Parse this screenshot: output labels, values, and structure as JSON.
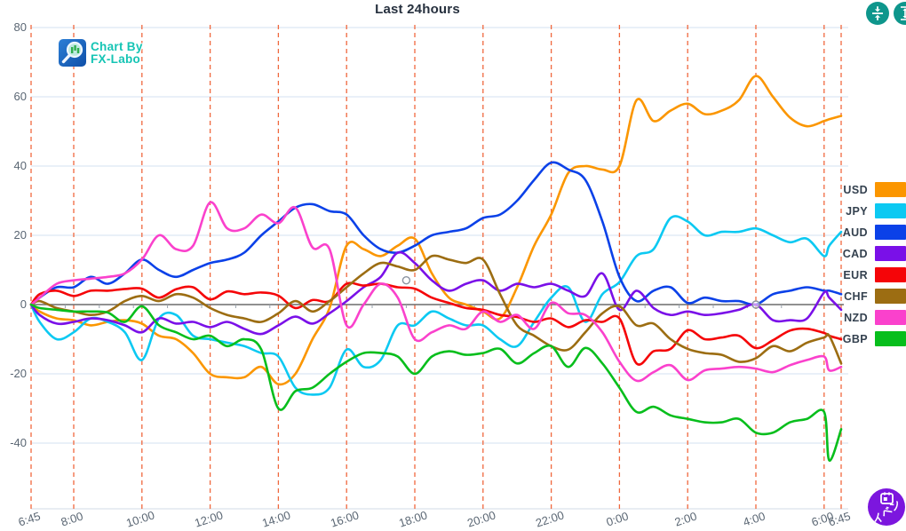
{
  "header": {
    "title": "Last 24hours"
  },
  "watermark": {
    "line1": "Chart By",
    "line2": "FX-Labo"
  },
  "controls": {
    "event_button_label": "イベン",
    "button_color_teal": "#0e968c",
    "event_button_color": "#7c16de"
  },
  "chart_data": {
    "type": "line",
    "title": "Last 24hours",
    "ylabel": "",
    "xlabel": "",
    "ylim": [
      -59,
      80
    ],
    "y_ticks": [
      80,
      60,
      40,
      20,
      0,
      -20,
      -40
    ],
    "grid": "on",
    "legend_position": "right",
    "grid_color_vertical": "#f0683e",
    "grid_color_horizontal": "#dce8f4",
    "x_ticks": [
      {
        "label": "6:45",
        "hour": 0
      },
      {
        "label": "8:00",
        "hour": 1.25
      },
      {
        "label": "10:00",
        "hour": 3.25
      },
      {
        "label": "12:00",
        "hour": 5.25
      },
      {
        "label": "14:00",
        "hour": 7.25
      },
      {
        "label": "16:00",
        "hour": 9.25
      },
      {
        "label": "18:00",
        "hour": 11.25
      },
      {
        "label": "20:00",
        "hour": 13.25
      },
      {
        "label": "22:00",
        "hour": 15.25
      },
      {
        "label": "0:00",
        "hour": 17.25
      },
      {
        "label": "2:00",
        "hour": 19.25
      },
      {
        "label": "4:00",
        "hour": 21.25
      },
      {
        "label": "6:00",
        "hour": 23.25
      },
      {
        "label": "6:45",
        "hour": 23.75
      }
    ],
    "categories": [
      "6:45",
      "7:00",
      "7:30",
      "8:00",
      "8:30",
      "9:00",
      "9:30",
      "10:00",
      "10:30",
      "11:00",
      "11:30",
      "12:00",
      "12:30",
      "13:00",
      "13:30",
      "14:00",
      "14:30",
      "15:00",
      "15:30",
      "16:00",
      "16:30",
      "17:00",
      "17:30",
      "18:00",
      "18:30",
      "19:00",
      "19:30",
      "20:00",
      "20:30",
      "21:00",
      "21:30",
      "22:00",
      "22:30",
      "23:00",
      "23:30",
      "0:00",
      "0:30",
      "1:00",
      "1:30",
      "2:00",
      "2:30",
      "3:00",
      "3:30",
      "4:00",
      "4:30",
      "5:00",
      "5:30",
      "6:00",
      "6:15",
      "6:45"
    ],
    "hours": [
      0,
      0.25,
      0.75,
      1.25,
      1.75,
      2.25,
      2.75,
      3.25,
      3.75,
      4.25,
      4.75,
      5.25,
      5.75,
      6.25,
      6.75,
      7.25,
      7.75,
      8.25,
      8.75,
      9.25,
      9.75,
      10.25,
      10.75,
      11.25,
      11.75,
      12.25,
      12.75,
      13.25,
      13.75,
      14.25,
      14.75,
      15.25,
      15.75,
      16.25,
      16.75,
      17.25,
      17.75,
      18.25,
      18.75,
      19.25,
      19.75,
      20.25,
      20.75,
      21.25,
      21.75,
      22.25,
      22.75,
      23.25,
      23.4,
      23.75
    ],
    "series": [
      {
        "name": "USD",
        "color": "#fb9600",
        "values": [
          0,
          -2,
          -4,
          -4.5,
          -6,
          -5,
          -4.5,
          -5.5,
          -9,
          -10,
          -14,
          -20,
          -21,
          -21,
          -18,
          -23,
          -20,
          -10,
          -1,
          17,
          16,
          14,
          17,
          19,
          9,
          2,
          0,
          -2,
          -4,
          5,
          17,
          26,
          38,
          40,
          39,
          40,
          59,
          53,
          56,
          58,
          55,
          56,
          59,
          66,
          60,
          54,
          51.5,
          53,
          53.5,
          54.5
        ]
      },
      {
        "name": "JPY",
        "color": "#0cc9f2",
        "values": [
          0,
          -5,
          -10,
          -8,
          -4,
          -5,
          -8,
          -16,
          -4,
          -3,
          -9,
          -10,
          -11,
          -12,
          -14,
          -15,
          -24,
          -26,
          -24,
          -13,
          -18,
          -16,
          -6,
          -6,
          -2,
          -4,
          -6,
          -6,
          -10,
          -12,
          -5,
          2,
          5,
          -5,
          3,
          6.5,
          14,
          16,
          25,
          24,
          20,
          21,
          21,
          22,
          20,
          18,
          19,
          14,
          17,
          21
        ]
      },
      {
        "name": "AUD",
        "color": "#0b41e8",
        "values": [
          0,
          2,
          5,
          5,
          8,
          6,
          9,
          13,
          10,
          8,
          10,
          12,
          13,
          15,
          20,
          24,
          28,
          29,
          27,
          26,
          20,
          16,
          15,
          17,
          20,
          21,
          22,
          25,
          26,
          30,
          36,
          41,
          39,
          36,
          24,
          8,
          1,
          4,
          5,
          0.5,
          2,
          1,
          1,
          0,
          3,
          4,
          5,
          4,
          4,
          3
        ]
      },
      {
        "name": "CAD",
        "color": "#7a10e8",
        "values": [
          0,
          -3,
          -5.5,
          -5,
          -4,
          -4.5,
          -6,
          -8,
          -4,
          -5.5,
          -5,
          -6.5,
          -5,
          -7,
          -8.5,
          -6,
          -3.5,
          -5.5,
          -2.5,
          1,
          5,
          8,
          15,
          12,
          7,
          4,
          6,
          7,
          4,
          6,
          5,
          6,
          4,
          2.5,
          9,
          -1.5,
          4,
          -1,
          -3,
          -2,
          -3,
          -2.5,
          -1.5,
          0,
          -4.5,
          -4.5,
          -4,
          3.5,
          2,
          -1.5
        ]
      },
      {
        "name": "EUR",
        "color": "#f50508",
        "values": [
          0,
          3,
          4,
          2.5,
          4,
          4,
          4.5,
          4.6,
          2,
          4.4,
          5,
          1.5,
          3.8,
          3,
          3.5,
          2.6,
          -1,
          1.3,
          1,
          6,
          5.5,
          6,
          5,
          4.6,
          2,
          0.5,
          -1,
          -1.5,
          -3,
          -3.6,
          -5,
          -4,
          -6.5,
          -4.5,
          -5,
          -4,
          -17,
          -13.5,
          -12.8,
          -7.4,
          -10,
          -9.5,
          -9,
          -12.6,
          -10.3,
          -7.5,
          -7,
          -8.2,
          -9,
          -10
        ]
      },
      {
        "name": "CHF",
        "color": "#9c6d12",
        "values": [
          0,
          1,
          -1,
          -2,
          -3,
          -2,
          1,
          2.5,
          1,
          3,
          2,
          -1,
          -3,
          -4,
          -5,
          -2.5,
          1,
          -2,
          1,
          5,
          9,
          12,
          11,
          10,
          14,
          13,
          12,
          13,
          3,
          -6,
          -9,
          -12,
          -13,
          -8,
          -2.5,
          -0.5,
          -6,
          -5.5,
          -10,
          -12.8,
          -14,
          -14.5,
          -16.5,
          -15.5,
          -12,
          -13.5,
          -11,
          -9.5,
          -9,
          -17
        ]
      },
      {
        "name": "NZD",
        "color": "#fa41cc",
        "values": [
          0,
          2,
          6,
          7,
          7.5,
          8,
          9,
          13,
          20,
          16,
          17,
          29.5,
          22,
          22,
          26,
          23.5,
          28,
          16.5,
          16,
          -6,
          0,
          6,
          2,
          -10,
          -8,
          -6,
          -7,
          -2,
          -5,
          -3,
          -7,
          0.5,
          -2.5,
          -3,
          -8,
          -16.5,
          -22,
          -19.5,
          -17.5,
          -21.8,
          -19,
          -18.5,
          -18,
          -18.5,
          -19.5,
          -17.5,
          -16,
          -15,
          -19,
          -18
        ]
      },
      {
        "name": "GBP",
        "color": "#07be1c",
        "values": [
          0,
          -1,
          -1.5,
          -2,
          -2,
          -2.3,
          -5,
          -0.5,
          -6,
          -8,
          -10,
          -9,
          -12,
          -10,
          -13,
          -30,
          -25,
          -24,
          -20,
          -16.5,
          -14,
          -14,
          -15,
          -20,
          -15,
          -13.5,
          -14.5,
          -14,
          -12.8,
          -17,
          -14,
          -12,
          -18,
          -12.5,
          -17,
          -24,
          -31,
          -29.5,
          -32,
          -33,
          -34,
          -34,
          -33,
          -37,
          -37,
          -34,
          -33,
          -31,
          -45,
          -36
        ]
      }
    ],
    "markers": [
      {
        "hour": 11.0,
        "value": 7,
        "series": "EUR"
      },
      {
        "hour": 21.25,
        "value": 0,
        "series": "CAD"
      }
    ]
  }
}
